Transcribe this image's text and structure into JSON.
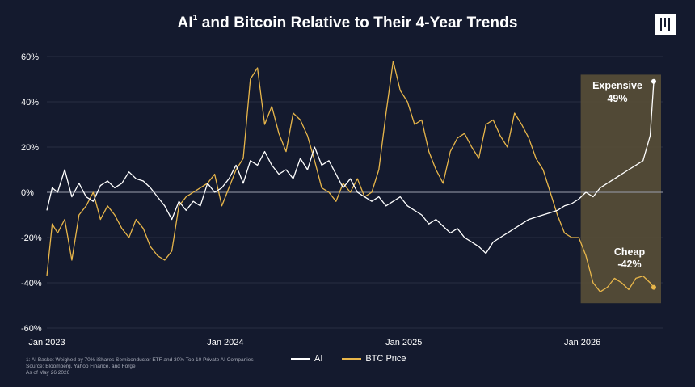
{
  "header": {
    "title_part1": "AI",
    "title_sup": "1",
    "title_part2": " and Bitcoin Relative to Their 4-Year Trends"
  },
  "footnotes": [
    "1: AI Basket Weighed by 70% iShares Semiconductor ETF and 30% Top 10 Private AI Companies",
    "Source: Bloomberg, Yahoo Finance, and Forge",
    "As of May 26 2026"
  ],
  "colors": {
    "background": "#141a2e",
    "ai_line": "#ffffff",
    "btc_line": "#e8b64a",
    "highlight_box": "#5c5237",
    "gridline": "#2f3548"
  },
  "chart_data": {
    "type": "line",
    "title": "AI and Bitcoin Relative to Their 4-Year Trends",
    "x_tick_labels": [
      "Jan 2023",
      "Jan 2024",
      "Jan 2025",
      "Jan 2026"
    ],
    "y_tick_labels": [
      "60%",
      "40%",
      "20%",
      "0%",
      "-20%",
      "-40%",
      "-60%"
    ],
    "y_ticks": [
      60,
      40,
      20,
      0,
      -20,
      -40,
      -60
    ],
    "xlim": [
      2023.0,
      2026.45
    ],
    "ylim": [
      -60,
      60
    ],
    "grid": true,
    "legend_position": "bottom-center",
    "series": [
      {
        "name": "AI",
        "color": "#ffffff",
        "x": [
          2023.0,
          2023.03,
          2023.06,
          2023.1,
          2023.14,
          2023.18,
          2023.22,
          2023.26,
          2023.3,
          2023.34,
          2023.38,
          2023.42,
          2023.46,
          2023.5,
          2023.54,
          2023.58,
          2023.62,
          2023.66,
          2023.7,
          2023.74,
          2023.78,
          2023.82,
          2023.86,
          2023.9,
          2023.94,
          2023.98,
          2024.02,
          2024.06,
          2024.1,
          2024.14,
          2024.18,
          2024.22,
          2024.26,
          2024.3,
          2024.34,
          2024.38,
          2024.42,
          2024.46,
          2024.5,
          2024.54,
          2024.58,
          2024.62,
          2024.66,
          2024.7,
          2024.74,
          2024.78,
          2024.82,
          2024.86,
          2024.9,
          2024.94,
          2024.98,
          2025.02,
          2025.06,
          2025.1,
          2025.14,
          2025.18,
          2025.22,
          2025.26,
          2025.3,
          2025.34,
          2025.38,
          2025.42,
          2025.46,
          2025.5,
          2025.54,
          2025.58,
          2025.62,
          2025.66,
          2025.7,
          2025.74,
          2025.78,
          2025.82,
          2025.86,
          2025.9,
          2025.94,
          2025.98,
          2026.02,
          2026.06,
          2026.1,
          2026.14,
          2026.18,
          2026.22,
          2026.26,
          2026.3,
          2026.34,
          2026.38,
          2026.4
        ],
        "values": [
          -8,
          2,
          0,
          10,
          -2,
          4,
          -2,
          -4,
          3,
          5,
          2,
          4,
          9,
          6,
          5,
          2,
          -2,
          -6,
          -12,
          -4,
          -8,
          -4,
          -6,
          4,
          0,
          2,
          6,
          12,
          4,
          14,
          12,
          18,
          12,
          8,
          10,
          6,
          15,
          10,
          20,
          12,
          14,
          8,
          2,
          6,
          0,
          -2,
          -4,
          -2,
          -6,
          -4,
          -2,
          -6,
          -8,
          -10,
          -14,
          -12,
          -15,
          -18,
          -16,
          -20,
          -22,
          -24,
          -27,
          -22,
          -20,
          -18,
          -16,
          -14,
          -12,
          -11,
          -10,
          -9,
          -8,
          -6,
          -5,
          -3,
          0,
          -2,
          2,
          4,
          6,
          8,
          10,
          12,
          14,
          25,
          49
        ]
      },
      {
        "name": "BTC Price",
        "color": "#e8b64a",
        "x": [
          2023.0,
          2023.03,
          2023.06,
          2023.1,
          2023.14,
          2023.18,
          2023.22,
          2023.26,
          2023.3,
          2023.34,
          2023.38,
          2023.42,
          2023.46,
          2023.5,
          2023.54,
          2023.58,
          2023.62,
          2023.66,
          2023.7,
          2023.74,
          2023.78,
          2023.82,
          2023.86,
          2023.9,
          2023.94,
          2023.98,
          2024.02,
          2024.06,
          2024.1,
          2024.14,
          2024.18,
          2024.22,
          2024.26,
          2024.3,
          2024.34,
          2024.38,
          2024.42,
          2024.46,
          2024.5,
          2024.54,
          2024.58,
          2024.62,
          2024.66,
          2024.7,
          2024.74,
          2024.78,
          2024.82,
          2024.86,
          2024.9,
          2024.94,
          2024.98,
          2025.02,
          2025.06,
          2025.1,
          2025.14,
          2025.18,
          2025.22,
          2025.26,
          2025.3,
          2025.34,
          2025.38,
          2025.42,
          2025.46,
          2025.5,
          2025.54,
          2025.58,
          2025.62,
          2025.66,
          2025.7,
          2025.74,
          2025.78,
          2025.82,
          2025.86,
          2025.9,
          2025.94,
          2025.98,
          2026.02,
          2026.06,
          2026.1,
          2026.14,
          2026.18,
          2026.22,
          2026.26,
          2026.3,
          2026.34,
          2026.38,
          2026.4
        ],
        "values": [
          -37,
          -14,
          -18,
          -12,
          -30,
          -10,
          -6,
          0,
          -12,
          -6,
          -10,
          -16,
          -20,
          -12,
          -16,
          -24,
          -28,
          -30,
          -26,
          -6,
          -2,
          0,
          2,
          4,
          8,
          -6,
          2,
          10,
          15,
          50,
          55,
          30,
          38,
          26,
          18,
          35,
          32,
          25,
          14,
          2,
          0,
          -4,
          4,
          0,
          6,
          -2,
          0,
          10,
          35,
          58,
          45,
          40,
          30,
          32,
          18,
          10,
          4,
          18,
          24,
          26,
          20,
          15,
          30,
          32,
          25,
          20,
          35,
          30,
          24,
          15,
          10,
          0,
          -10,
          -18,
          -20,
          -20,
          -28,
          -40,
          -44,
          -42,
          -38,
          -40,
          -43,
          -38,
          -37,
          -40,
          -42
        ]
      }
    ],
    "annotations": [
      {
        "label": "Expensive",
        "value_label": "49%"
      },
      {
        "label": "Cheap",
        "value_label": "-42%"
      }
    ],
    "highlight_region": {
      "x_start": 2026.0,
      "x_end": 2026.45,
      "y_start": -49,
      "y_end": 52
    }
  }
}
